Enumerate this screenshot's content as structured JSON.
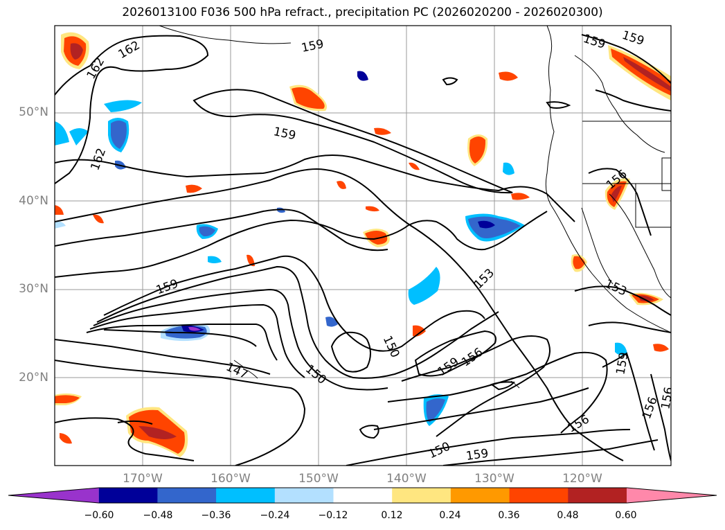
{
  "title": "2026013100 F036 500 hPa refract., precipitation PC (2026020200 - 2026020300)",
  "lat_labels": [
    "50°N",
    "40°N",
    "30°N",
    "20°N"
  ],
  "lon_labels": [
    "170°W",
    "160°W",
    "150°W",
    "140°W",
    "130°W",
    "120°W"
  ],
  "contour_labels": [
    "162",
    "162",
    "162",
    "159",
    "159",
    "159",
    "159",
    "159",
    "159",
    "159",
    "156",
    "156",
    "156",
    "156",
    "153",
    "153",
    "150",
    "150",
    "150",
    "147"
  ],
  "colorbar": {
    "ticks": [
      "−0.60",
      "−0.48",
      "−0.36",
      "−0.24",
      "−0.12",
      "0.12",
      "0.24",
      "0.36",
      "0.48",
      "0.60"
    ],
    "colors": [
      "#9933cc",
      "#000099",
      "#3366cc",
      "#00bfff",
      "#b3e0ff",
      "#ffffff",
      "#ffe680",
      "#ff9900",
      "#ff4400",
      "#b22222",
      "#ff88aa"
    ]
  }
}
